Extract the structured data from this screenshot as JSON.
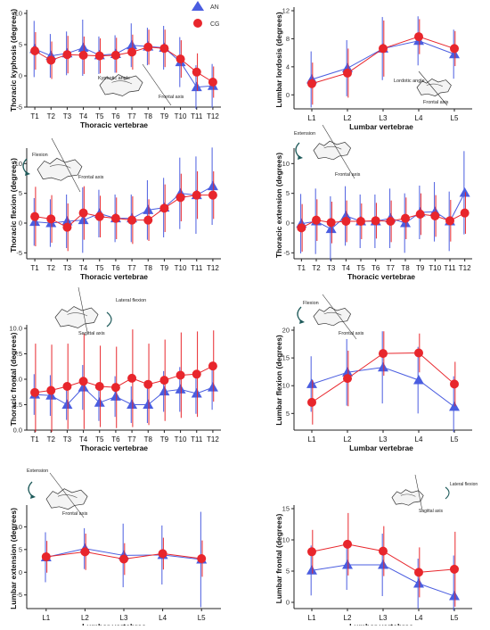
{
  "colors": {
    "an": "#4a5de0",
    "cg": "#e8262c",
    "axis": "#222222"
  },
  "legend": {
    "an_label": "AN",
    "cg_label": "CG"
  },
  "insets": {
    "kyphotic_angle": "Kyphotic angle",
    "frontal_axis": "Frontal axis",
    "lordotic_angle": "Lordotic angle",
    "flexion": "Flexion",
    "extension": "Extension",
    "lateral_flexion": "Lateral flexion",
    "sagittal_axis": "Sagittal axis"
  },
  "chart_data": [
    {
      "type": "line",
      "ylabel": "Thoracic kyphosis (degrees)",
      "xlabel": "Thoracic vertebrae",
      "ylim": [
        -5,
        10
      ],
      "yticks": [
        -5,
        0,
        5,
        10
      ],
      "categories": [
        "T1",
        "T2",
        "T3",
        "T4",
        "T5",
        "T6",
        "T7",
        "T8",
        "T9",
        "T10",
        "T11",
        "T12"
      ],
      "series": [
        {
          "name": "AN",
          "values": [
            4.3,
            3.2,
            3.6,
            4.5,
            3.3,
            3.5,
            4.9,
            4.7,
            4.5,
            2.2,
            -1.8,
            -1.6
          ],
          "errors": [
            4.5,
            3.5,
            3.5,
            4.5,
            3.0,
            3.0,
            3.5,
            3.0,
            3.5,
            4.0,
            3.5,
            3.5
          ]
        },
        {
          "name": "CG",
          "values": [
            4.0,
            2.5,
            3.4,
            3.3,
            3.2,
            3.3,
            3.8,
            4.6,
            4.4,
            2.7,
            0.6,
            -1.0
          ],
          "errors": [
            3.0,
            3.0,
            3.0,
            3.0,
            2.8,
            2.8,
            2.8,
            2.8,
            3.0,
            3.0,
            3.0,
            2.5
          ]
        }
      ]
    },
    {
      "type": "line",
      "ylabel": "Lumbar lordosis (degrees)",
      "xlabel": "Lumbar vertebrae",
      "ylim": [
        -2,
        12
      ],
      "yticks": [
        0,
        4,
        8,
        12
      ],
      "categories": [
        "L1",
        "L2",
        "L3",
        "L4",
        "L5"
      ],
      "series": [
        {
          "name": "AN",
          "values": [
            2.2,
            3.8,
            6.6,
            7.7,
            5.8
          ],
          "errors": [
            4.0,
            4.0,
            4.5,
            3.5,
            3.5
          ]
        },
        {
          "name": "CG",
          "values": [
            1.6,
            3.1,
            6.6,
            8.3,
            6.6
          ],
          "errors": [
            3.0,
            3.5,
            4.0,
            2.5,
            2.5
          ]
        }
      ]
    },
    {
      "type": "line",
      "ylabel": "Thoracic flexion (degrees)",
      "xlabel": "Thoracic vertebrae",
      "ylim": [
        -6,
        12
      ],
      "yticks": [
        -5,
        0,
        5,
        10
      ],
      "categories": [
        "T1",
        "T2",
        "T3",
        "T4",
        "T5",
        "T6",
        "T7",
        "T8",
        "T9",
        "T10",
        "T11",
        "T12"
      ],
      "series": [
        {
          "name": "AN",
          "values": [
            0.2,
            0.0,
            0.3,
            0.5,
            1.6,
            0.8,
            0.8,
            2.2,
            2.6,
            5.0,
            4.7,
            6.2
          ],
          "errors": [
            4.0,
            4.0,
            4.5,
            5.5,
            4.0,
            4.0,
            4.0,
            5.0,
            5.0,
            6.0,
            6.5,
            6.5
          ]
        },
        {
          "name": "CG",
          "values": [
            1.1,
            0.7,
            -0.7,
            1.7,
            1.1,
            0.8,
            0.5,
            0.5,
            2.5,
            4.3,
            4.7,
            4.7
          ],
          "errors": [
            5.0,
            4.0,
            4.0,
            4.5,
            3.5,
            3.5,
            4.0,
            3.5,
            4.0,
            4.0,
            4.0,
            4.0
          ]
        }
      ]
    },
    {
      "type": "line",
      "ylabel": "Thoracic extension (degrees)",
      "xlabel": "Thoracic vertebrae",
      "ylim": [
        -6,
        12
      ],
      "yticks": [
        -5,
        0,
        5,
        10
      ],
      "categories": [
        "T1",
        "T2",
        "T3",
        "T4",
        "T5",
        "T6",
        "T7",
        "T8",
        "T9",
        "T10",
        "T11",
        "T12"
      ],
      "series": [
        {
          "name": "AN",
          "values": [
            -0.1,
            0.3,
            -1.0,
            1.2,
            0.3,
            0.3,
            0.8,
            0.0,
            1.8,
            1.9,
            0.3,
            5.1
          ],
          "errors": [
            5.0,
            5.5,
            5.5,
            5.0,
            4.5,
            4.5,
            5.0,
            5.0,
            4.5,
            5.0,
            5.0,
            7.0
          ]
        },
        {
          "name": "CG",
          "values": [
            -0.8,
            0.5,
            0.1,
            0.3,
            0.3,
            0.4,
            0.3,
            0.8,
            1.5,
            1.2,
            0.4,
            1.7
          ],
          "errors": [
            4.0,
            3.5,
            3.5,
            3.5,
            3.0,
            3.0,
            3.5,
            3.5,
            3.5,
            3.5,
            3.5,
            3.5
          ]
        }
      ]
    },
    {
      "type": "line",
      "ylabel": "Thoracic frontal (degrees)",
      "xlabel": "Thoracic vertebrae",
      "ylim": [
        0,
        10
      ],
      "yticks": [
        0.0,
        2.5,
        5.0,
        7.5,
        10.0
      ],
      "categories": [
        "T1",
        "T2",
        "T3",
        "T4",
        "T5",
        "T6",
        "T7",
        "T8",
        "T9",
        "T10",
        "T11",
        "T12"
      ],
      "series": [
        {
          "name": "AN",
          "values": [
            3.5,
            3.4,
            2.5,
            4.2,
            2.7,
            3.3,
            2.5,
            2.5,
            3.8,
            4.0,
            3.6,
            4.2
          ],
          "errors": [
            2.0,
            2.0,
            1.5,
            2.2,
            1.8,
            2.0,
            1.8,
            1.8,
            2.0,
            2.2,
            2.0,
            2.2
          ]
        },
        {
          "name": "CG",
          "values": [
            3.7,
            3.9,
            4.3,
            4.8,
            4.3,
            4.2,
            5.1,
            4.5,
            4.9,
            5.4,
            5.5,
            6.3
          ],
          "errors": [
            4.8,
            4.5,
            4.2,
            4.7,
            4.0,
            4.0,
            4.8,
            4.0,
            4.0,
            4.2,
            4.2,
            3.5
          ]
        }
      ]
    },
    {
      "type": "line",
      "ylabel": "Lumbar flexion (degrees)",
      "xlabel": "Lumbar vertebrae",
      "ylim": [
        2,
        20
      ],
      "yticks": [
        5,
        10,
        15,
        20
      ],
      "categories": [
        "L1",
        "L2",
        "L3",
        "L4",
        "L5"
      ],
      "series": [
        {
          "name": "AN",
          "values": [
            10.3,
            12.4,
            13.3,
            11.0,
            6.2
          ],
          "errors": [
            5.0,
            6.0,
            6.5,
            6.0,
            5.5
          ]
        },
        {
          "name": "CG",
          "values": [
            7.0,
            11.3,
            15.8,
            15.9,
            10.3
          ],
          "errors": [
            4.0,
            5.0,
            4.0,
            3.5,
            4.0
          ]
        }
      ]
    },
    {
      "type": "line",
      "ylabel": "Lumbar extension (degrees)",
      "xlabel": "Lumbar vertebrae",
      "ylim": [
        -8,
        14
      ],
      "yticks": [
        -5,
        0,
        5,
        10
      ],
      "categories": [
        "L1",
        "L2",
        "L3",
        "L4",
        "L5"
      ],
      "series": [
        {
          "name": "AN",
          "values": [
            3.3,
            5.2,
            3.7,
            3.8,
            2.8
          ],
          "errors": [
            5.5,
            4.5,
            7.0,
            6.5,
            10.5
          ]
        },
        {
          "name": "CG",
          "values": [
            3.4,
            4.5,
            2.9,
            4.1,
            3.0
          ],
          "errors": [
            3.5,
            4.0,
            3.5,
            3.5,
            4.0
          ]
        }
      ]
    },
    {
      "type": "line",
      "ylabel": "Lumbar frontal (degrees)",
      "xlabel": "Lumbar vertebrae",
      "ylim": [
        -1,
        15
      ],
      "yticks": [
        0,
        5,
        10,
        15
      ],
      "categories": [
        "L1",
        "L2",
        "L3",
        "L4",
        "L5"
      ],
      "series": [
        {
          "name": "AN",
          "values": [
            5.1,
            6.0,
            6.0,
            3.0,
            1.0
          ],
          "errors": [
            4.0,
            4.0,
            5.0,
            4.0,
            6.5
          ]
        },
        {
          "name": "CG",
          "values": [
            8.1,
            9.3,
            8.2,
            4.8,
            5.3
          ],
          "errors": [
            3.5,
            5.0,
            4.0,
            4.0,
            6.0
          ]
        }
      ]
    }
  ]
}
